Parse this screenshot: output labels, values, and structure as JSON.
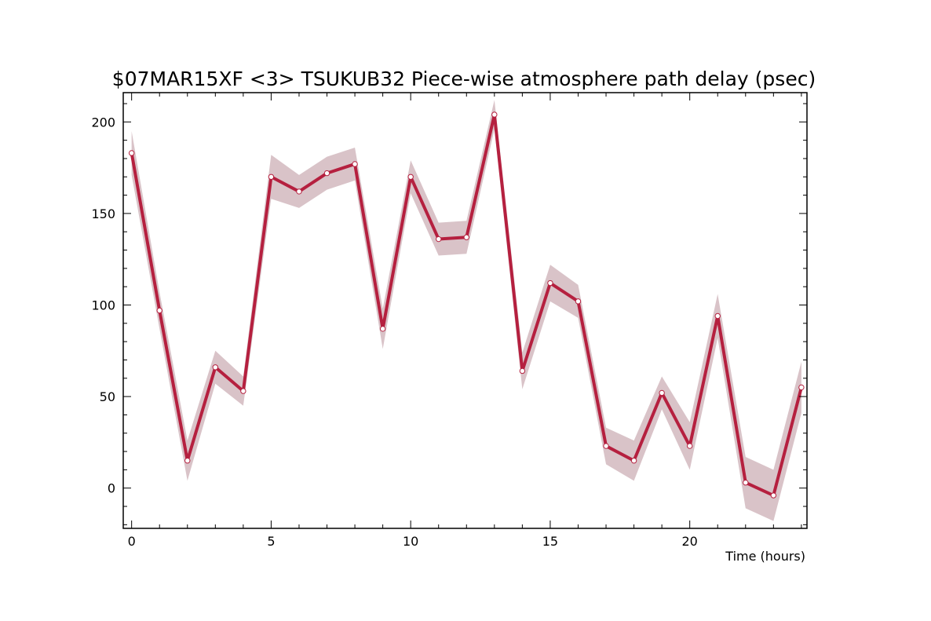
{
  "chart_data": {
    "type": "line",
    "title": "$07MAR15XF <3>  TSUKUB32  Piece-wise atmosphere path delay (psec)",
    "xlabel": "Time (hours)",
    "ylabel": "",
    "xlim": [
      -0.3,
      24.2
    ],
    "ylim": [
      -22,
      216
    ],
    "x_ticks": [
      0,
      5,
      10,
      15,
      20
    ],
    "y_ticks": [
      0,
      50,
      100,
      150,
      200
    ],
    "grid": false,
    "legend": "none",
    "series": [
      {
        "x": [
          0,
          1,
          2,
          3,
          4,
          5,
          6,
          7,
          8,
          9,
          10,
          11,
          12,
          13,
          14,
          15,
          16,
          17,
          18,
          19,
          20,
          21,
          22,
          23,
          24
        ],
        "values": [
          183,
          97,
          15,
          66,
          53,
          170,
          162,
          172,
          177,
          87,
          170,
          136,
          137,
          204,
          64,
          112,
          102,
          23,
          15,
          52,
          23,
          94,
          3,
          -4,
          55
        ],
        "error": [
          12,
          10,
          11,
          9,
          8,
          12,
          9,
          9,
          9,
          11,
          9,
          9,
          9,
          8,
          10,
          10,
          9,
          10,
          11,
          9,
          13,
          12,
          14,
          14,
          14
        ]
      }
    ],
    "colors": {
      "line": "#b5203f",
      "band": "#d9c3c8",
      "marker_fill": "#ffffff",
      "marker_stroke": "#b5203f",
      "axis": "#000000"
    }
  }
}
